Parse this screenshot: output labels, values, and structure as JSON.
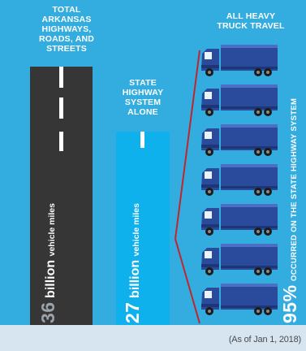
{
  "columns": [
    {
      "title_lines": [
        "TOTAL",
        "ARKANSAS",
        "HIGHWAYS,",
        "ROADS, AND",
        "STREETS"
      ],
      "value": "36",
      "unit": "billion",
      "label": "vehicle miles"
    },
    {
      "title_lines": [
        "STATE",
        "HIGHWAY",
        "SYSTEM",
        "ALONE"
      ],
      "value": "27",
      "unit": "billion",
      "label": "vehicle miles"
    },
    {
      "title_lines": [
        "ALL HEAVY",
        "TRUCK TRAVEL"
      ],
      "value": "95%",
      "label": "OCCURRED ON THE STATE HIGHWAY SYSTEM"
    }
  ],
  "truck_icon": "semi-truck-icon",
  "truck_count": 7,
  "colors": {
    "background": "#33acdf",
    "road_dark": "#363636",
    "road_blue": "#0eb1ec",
    "truck": "#2a4a9c",
    "connector": "#c0262d"
  },
  "footnote": "(As of Jan 1, 2018)"
}
